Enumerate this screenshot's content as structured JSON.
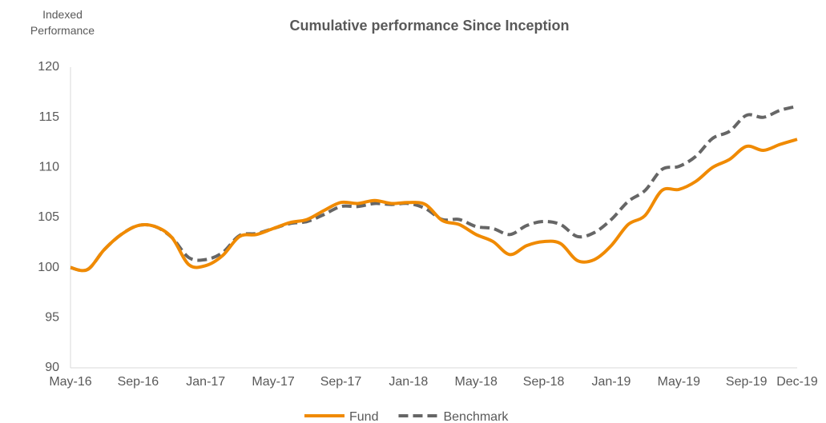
{
  "chart_data": {
    "type": "line",
    "title": "Cumulative performance Since Inception",
    "y_label": "Indexed Performance",
    "categories": [
      "May-16",
      null,
      null,
      null,
      "Sep-16",
      null,
      null,
      null,
      "Jan-17",
      null,
      null,
      null,
      "May-17",
      null,
      null,
      null,
      "Sep-17",
      null,
      null,
      null,
      "Jan-18",
      null,
      null,
      null,
      "May-18",
      null,
      null,
      null,
      "Sep-18",
      null,
      null,
      null,
      "Jan-19",
      null,
      null,
      null,
      "May-19",
      null,
      null,
      null,
      "Sep-19",
      null,
      null,
      "Dec-19"
    ],
    "series": [
      {
        "name": "Fund",
        "color": "#f08a00",
        "dash": false,
        "values": [
          100,
          99.8,
          101.8,
          103.3,
          104.2,
          104.1,
          103,
          100.3,
          100.2,
          101.2,
          103.1,
          103.3,
          103.9,
          104.5,
          104.8,
          105.7,
          106.5,
          106.4,
          106.7,
          106.4,
          106.5,
          106.3,
          104.7,
          104.3,
          103.3,
          102.6,
          101.3,
          102.2,
          102.6,
          102.4,
          100.7,
          100.8,
          102.2,
          104.3,
          105.2,
          107.7,
          107.8,
          108.6,
          110,
          110.8,
          112.1,
          111.7,
          112.3,
          112.8
        ]
      },
      {
        "name": "Benchmark",
        "color": "#666666",
        "dash": true,
        "values": [
          100,
          99.8,
          101.8,
          103.3,
          104.2,
          104.1,
          103,
          101,
          100.8,
          101.5,
          103.2,
          103.4,
          103.9,
          104.4,
          104.6,
          105.3,
          106.1,
          106.1,
          106.4,
          106.3,
          106.4,
          105.9,
          104.8,
          104.8,
          104.1,
          103.9,
          103.3,
          104.2,
          104.6,
          104.3,
          103.1,
          103.5,
          104.8,
          106.6,
          107.7,
          109.8,
          110.1,
          111.1,
          112.9,
          113.6,
          115.2,
          115,
          115.7,
          116.1
        ]
      }
    ],
    "ylim": [
      90,
      120
    ],
    "yticks": [
      90,
      95,
      100,
      105,
      110,
      115,
      120
    ],
    "legend": "bottom",
    "grid": false
  }
}
